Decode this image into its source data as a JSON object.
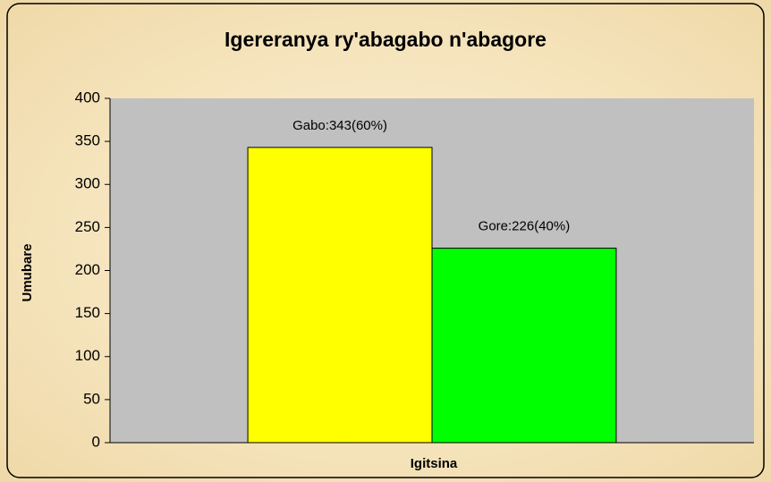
{
  "chart_data": {
    "type": "bar",
    "title": "Igereranya ry'abagabo n'abagore",
    "x_label": "Igitsina",
    "y_label": "Umubare",
    "categories": [
      null
    ],
    "series": [
      {
        "color": "#ffff00",
        "values": [
          343
        ],
        "value_labels": [
          "Gabo:343(60%)"
        ]
      },
      {
        "color": "#00ff00",
        "values": [
          226
        ],
        "value_labels": [
          "Gore:226(40%)"
        ]
      }
    ],
    "ylim": [
      0,
      400
    ],
    "yticks": [
      0,
      50,
      100,
      150,
      200,
      250,
      300,
      350,
      400
    ],
    "grid": false
  }
}
